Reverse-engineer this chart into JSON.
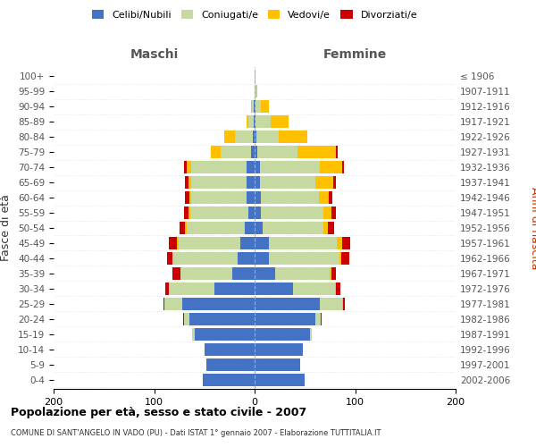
{
  "age_groups": [
    "0-4",
    "5-9",
    "10-14",
    "15-19",
    "20-24",
    "25-29",
    "30-34",
    "35-39",
    "40-44",
    "45-49",
    "50-54",
    "55-59",
    "60-64",
    "65-69",
    "70-74",
    "75-79",
    "80-84",
    "85-89",
    "90-94",
    "95-99",
    "100+"
  ],
  "birth_years": [
    "2002-2006",
    "1997-2001",
    "1992-1996",
    "1987-1991",
    "1982-1986",
    "1977-1981",
    "1972-1976",
    "1967-1971",
    "1962-1966",
    "1957-1961",
    "1952-1956",
    "1947-1951",
    "1942-1946",
    "1937-1941",
    "1932-1936",
    "1927-1931",
    "1922-1926",
    "1917-1921",
    "1912-1916",
    "1907-1911",
    "≤ 1906"
  ],
  "maschi_celibi": [
    52,
    48,
    50,
    60,
    65,
    72,
    40,
    22,
    17,
    14,
    10,
    6,
    8,
    8,
    8,
    4,
    2,
    1,
    1,
    0,
    0
  ],
  "maschi_coniugati": [
    0,
    0,
    0,
    2,
    5,
    18,
    45,
    52,
    65,
    62,
    58,
    58,
    55,
    55,
    55,
    30,
    18,
    5,
    2,
    0,
    0
  ],
  "maschi_vedovi": [
    0,
    0,
    0,
    0,
    0,
    0,
    0,
    0,
    0,
    1,
    1,
    2,
    2,
    3,
    5,
    10,
    10,
    2,
    1,
    0,
    0
  ],
  "maschi_divorziati": [
    0,
    0,
    0,
    0,
    1,
    1,
    4,
    8,
    5,
    8,
    6,
    4,
    4,
    3,
    2,
    0,
    0,
    0,
    0,
    0,
    0
  ],
  "femmine_celibi": [
    50,
    45,
    48,
    55,
    60,
    65,
    38,
    20,
    14,
    14,
    8,
    6,
    6,
    5,
    5,
    3,
    2,
    1,
    1,
    0,
    0
  ],
  "femmine_coniugati": [
    0,
    0,
    0,
    2,
    6,
    22,
    42,
    55,
    70,
    68,
    60,
    62,
    58,
    55,
    60,
    40,
    22,
    15,
    5,
    2,
    0
  ],
  "femmine_vedovi": [
    0,
    0,
    0,
    0,
    0,
    1,
    1,
    1,
    2,
    5,
    5,
    8,
    10,
    18,
    22,
    38,
    28,
    18,
    8,
    1,
    1
  ],
  "femmine_divorziati": [
    0,
    0,
    0,
    0,
    1,
    2,
    4,
    5,
    8,
    8,
    6,
    5,
    3,
    3,
    2,
    2,
    0,
    0,
    0,
    0,
    0
  ],
  "colors": {
    "celibi": "#4472c4",
    "coniugati": "#c5d9a0",
    "vedovi": "#ffc000",
    "divorziati": "#cc0000"
  },
  "title": "Popolazione per età, sesso e stato civile - 2007",
  "subtitle": "COMUNE DI SANT'ANGELO IN VADO (PU) - Dati ISTAT 1° gennaio 2007 - Elaborazione TUTTITALIA.IT",
  "xlabel_left": "Maschi",
  "xlabel_right": "Femmine",
  "ylabel_left": "Fasce di età",
  "ylabel_right": "Anni di nascita",
  "xlim": 200,
  "background_color": "#ffffff",
  "grid_color": "#cccccc"
}
